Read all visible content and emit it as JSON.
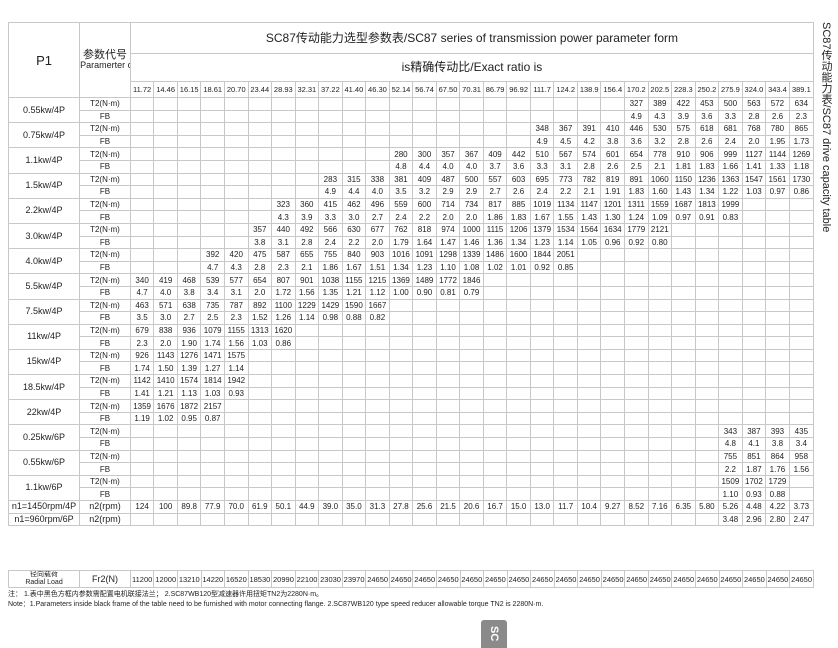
{
  "header": {
    "p1": "P1",
    "code_cn": "参数代号",
    "code_en": "Paramerter code",
    "title": "SC87传动能力选型参数表/SC87 series of transmission power parameter form",
    "ratio_label": "is精确传动比/Exact ratio is"
  },
  "ratios": [
    "11.72",
    "14.46",
    "16.15",
    "18.61",
    "20.70",
    "23.44",
    "28.93",
    "32.31",
    "37.22",
    "41.40",
    "46.30",
    "52.14",
    "56.74",
    "67.50",
    "70.31",
    "86.79",
    "96.92",
    "111.7",
    "124.2",
    "138.9",
    "156.4",
    "170.2",
    "202.5",
    "228.3",
    "250.2",
    "275.9",
    "324.0",
    "343.4",
    "389.1"
  ],
  "t2_label": "T2(N·m)",
  "fb_label": "FB",
  "rows": [
    {
      "power": "0.55kw/4P",
      "start_ratio": "170.2",
      "t2": [
        "327",
        "389",
        "422",
        "453",
        "500",
        "563",
        "572",
        "634"
      ],
      "fb": [
        "4.9",
        "4.3",
        "3.9",
        "3.6",
        "3.3",
        "2.8",
        "2.6",
        "2.3"
      ]
    },
    {
      "power": "0.75kw/4P",
      "start_ratio": "111.7",
      "t2": [
        "348",
        "367",
        "391",
        "410",
        "446",
        "530",
        "575",
        "618",
        "681",
        "768",
        "780",
        "865"
      ],
      "fb": [
        "4.9",
        "4.5",
        "4.2",
        "3.8",
        "3.6",
        "3.2",
        "2.8",
        "2.6",
        "2.4",
        "2.0",
        "1.95",
        "1.73"
      ]
    },
    {
      "power": "1.1kw/4P",
      "start_ratio": "52.14",
      "t2": [
        "280",
        "300",
        "357",
        "367",
        "409",
        "442",
        "510",
        "567",
        "574",
        "601",
        "654",
        "778",
        "910",
        "906",
        "999",
        "1127",
        "1144",
        "1269"
      ],
      "fb": [
        "4.8",
        "4.4",
        "4.0",
        "4.0",
        "3.7",
        "3.6",
        "3.3",
        "3.1",
        "2.8",
        "2.6",
        "2.5",
        "2.1",
        "1.81",
        "1.83",
        "1.66",
        "1.41",
        "1.33",
        "1.18"
      ]
    },
    {
      "power": "1.5kw/4P",
      "start_ratio": "37.22",
      "t2": [
        "283",
        "315",
        "338",
        "381",
        "409",
        "487",
        "500",
        "557",
        "603",
        "695",
        "773",
        "782",
        "819",
        "891",
        "1060",
        "1150",
        "1236",
        "1363",
        "1547",
        "1561",
        "1730"
      ],
      "fb": [
        "4.9",
        "4.4",
        "4.0",
        "3.5",
        "3.2",
        "2.9",
        "2.9",
        "2.7",
        "2.6",
        "2.4",
        "2.2",
        "2.1",
        "1.91",
        "1.83",
        "1.60",
        "1.43",
        "1.34",
        "1.22",
        "1.03",
        "0.97",
        "0.86"
      ]
    },
    {
      "power": "2.2kw/4P",
      "start_ratio": "28.93",
      "t2": [
        "323",
        "360",
        "415",
        "462",
        "496",
        "559",
        "600",
        "714",
        "734",
        "817",
        "885",
        "1019",
        "1134",
        "1147",
        "1201",
        "1311",
        "1559",
        "1687",
        "1813",
        "1999"
      ],
      "fb": [
        "4.3",
        "3.9",
        "3.3",
        "3.0",
        "2.7",
        "2.4",
        "2.2",
        "2.0",
        "2.0",
        "1.86",
        "1.83",
        "1.67",
        "1.55",
        "1.43",
        "1.30",
        "1.24",
        "1.09",
        "0.97",
        "0.91",
        "0.83"
      ]
    },
    {
      "power": "3.0kw/4P",
      "start_ratio": "23.44",
      "t2": [
        "357",
        "440",
        "492",
        "566",
        "630",
        "677",
        "762",
        "818",
        "974",
        "1000",
        "1115",
        "1206",
        "1379",
        "1534",
        "1564",
        "1634",
        "1779",
        "2121"
      ],
      "fb": [
        "3.8",
        "3.1",
        "2.8",
        "2.4",
        "2.2",
        "2.0",
        "1.79",
        "1.64",
        "1.47",
        "1.46",
        "1.36",
        "1.34",
        "1.23",
        "1.14",
        "1.05",
        "0.96",
        "0.92",
        "0.80"
      ]
    },
    {
      "power": "4.0kw/4P",
      "start_ratio": "18.61",
      "t2": [
        "392",
        "420",
        "475",
        "587",
        "655",
        "755",
        "840",
        "903",
        "1016",
        "1091",
        "1298",
        "1339",
        "1486",
        "1600",
        "1844",
        "2051"
      ],
      "fb": [
        "4.7",
        "4.3",
        "2.8",
        "2.3",
        "2.1",
        "1.86",
        "1.67",
        "1.51",
        "1.34",
        "1.23",
        "1.10",
        "1.08",
        "1.02",
        "1.01",
        "0.92",
        "0.85"
      ]
    },
    {
      "power": "5.5kw/4P",
      "start_ratio": "11.72",
      "t2": [
        "340",
        "419",
        "468",
        "539",
        "577",
        "654",
        "807",
        "901",
        "1038",
        "1155",
        "1215",
        "1369",
        "1489",
        "1772",
        "1846"
      ],
      "fb": [
        "4.7",
        "4.0",
        "3.8",
        "3.4",
        "3.1",
        "2.0",
        "1.72",
        "1.56",
        "1.35",
        "1.21",
        "1.12",
        "1.00",
        "0.90",
        "0.81",
        "0.79"
      ]
    },
    {
      "power": "7.5kw/4P",
      "start_ratio": "11.72",
      "t2": [
        "463",
        "571",
        "638",
        "735",
        "787",
        "892",
        "1100",
        "1229",
        "1429",
        "1590",
        "1667"
      ],
      "fb": [
        "3.5",
        "3.0",
        "2.7",
        "2.5",
        "2.3",
        "1.52",
        "1.26",
        "1.14",
        "0.98",
        "0.88",
        "0.82"
      ]
    },
    {
      "power": "11kw/4P",
      "start_ratio": "11.72",
      "t2": [
        "679",
        "838",
        "936",
        "1079",
        "1155",
        "1313",
        "1620"
      ],
      "fb": [
        "2.3",
        "2.0",
        "1.90",
        "1.74",
        "1.56",
        "1.03",
        "0.86"
      ]
    },
    {
      "power": "15kw/4P",
      "start_ratio": "11.72",
      "t2": [
        "926",
        "1143",
        "1276",
        "1471",
        "1575"
      ],
      "fb": [
        "1.74",
        "1.50",
        "1.39",
        "1.27",
        "1.14"
      ]
    },
    {
      "power": "18.5kw/4P",
      "start_ratio": "11.72",
      "t2": [
        "1142",
        "1410",
        "1574",
        "1814",
        "1942"
      ],
      "fb": [
        "1.41",
        "1.21",
        "1.13",
        "1.03",
        "0.93"
      ]
    },
    {
      "power": "22kw/4P",
      "start_ratio": "11.72",
      "t2": [
        "1359",
        "1676",
        "1872",
        "2157"
      ],
      "fb": [
        "1.19",
        "1.02",
        "0.95",
        "0.87"
      ]
    },
    {
      "power": "0.25kw/6P",
      "start_ratio": "275.9",
      "t2": [
        "343",
        "387",
        "393",
        "435"
      ],
      "fb": [
        "4.8",
        "4.1",
        "3.8",
        "3.4"
      ]
    },
    {
      "power": "0.55kw/6P",
      "start_ratio": "275.9",
      "t2": [
        "755",
        "851",
        "864",
        "958"
      ],
      "fb": [
        "2.2",
        "1.87",
        "1.76",
        "1.56"
      ]
    },
    {
      "power": "1.1kw/6P",
      "start_ratio": "275.9",
      "t2": [
        "1509",
        "1702",
        "1729"
      ],
      "fb": [
        "1.10",
        "0.93",
        "0.88"
      ]
    }
  ],
  "speed_rows": [
    {
      "label": "n1=1450rpm/4P",
      "code": "n2(rpm)",
      "start_ratio": "11.72",
      "values": [
        "124",
        "100",
        "89.8",
        "77.9",
        "70.0",
        "61.9",
        "50.1",
        "44.9",
        "39.0",
        "35.0",
        "31.3",
        "27.8",
        "25.6",
        "21.5",
        "20.6",
        "16.7",
        "15.0",
        "13.0",
        "11.7",
        "10.4",
        "9.27",
        "8.52",
        "7.16",
        "6.35",
        "5.80",
        "5.26",
        "4.48",
        "4.22",
        "3.73"
      ]
    },
    {
      "label": "n1=960rpm/6P",
      "code": "n2(rpm)",
      "start_ratio": "275.9",
      "values": [
        "3.48",
        "2.96",
        "2.80",
        "2.47"
      ]
    }
  ],
  "radial": {
    "label_cn": "径向载荷",
    "label_en": "Radial Load",
    "code": "Fr2(N)",
    "values": [
      "11200",
      "12000",
      "13210",
      "14220",
      "16520",
      "18530",
      "20990",
      "22100",
      "23030",
      "23970",
      "24650",
      "24650",
      "24650",
      "24650",
      "24650",
      "24650",
      "24650",
      "24650",
      "24650",
      "24650",
      "24650",
      "24650",
      "24650",
      "24650",
      "24650",
      "24650",
      "24650",
      "24650",
      "24650"
    ]
  },
  "notes": {
    "cn": "注：  1.表中黑色方框内参数需配置电机联接法兰；  2.SC87WB120型减速器许用扭矩TN2为2280N·m。",
    "en": "Note：1.Parameters inside black frame of the table need to be furnished with motor connecting flange.    2.SC87WB120 type speed reducer allowable torque TN2 is 2280N·m."
  },
  "side_title": "SC87传动能力表/SC87 drive capacity table",
  "page_tab": "SC"
}
